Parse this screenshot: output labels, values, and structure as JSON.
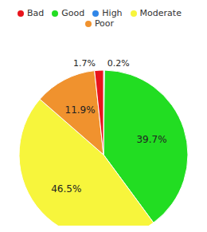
{
  "chart_data": {
    "type": "pie",
    "categories": [
      "High",
      "Good",
      "Moderate",
      "Poor",
      "Bad"
    ],
    "values": [
      0.2,
      39.7,
      46.5,
      11.9,
      1.7
    ],
    "value_labels": [
      "0.2%",
      "39.7%",
      "46.5%",
      "11.9%",
      "1.7%"
    ],
    "colors": [
      "#2f86e8",
      "#22dd22",
      "#f7f53c",
      "#f0922e",
      "#e8141c"
    ],
    "data_labels": true,
    "legend": "top"
  }
}
